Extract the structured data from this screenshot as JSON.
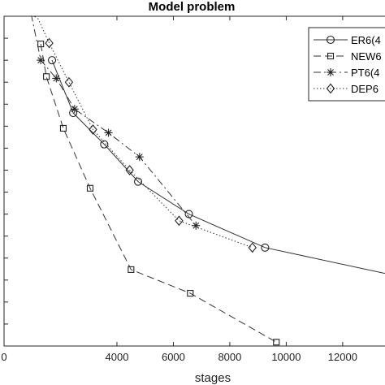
{
  "chart_data": {
    "type": "line",
    "title": "Model problem",
    "xlabel": "stages",
    "ylabel": "",
    "xlim": [
      0,
      13500
    ],
    "ylog": true,
    "ylim": [
      1e-16,
      0.1
    ],
    "xticks": [
      0,
      4000,
      6000,
      8000,
      10000,
      12000
    ],
    "xtick_labels": [
      "0",
      "4000",
      "6000",
      "8000",
      "10000",
      "12000"
    ],
    "grid": false,
    "legend_position": "top-right",
    "series": [
      {
        "name": "ER6(4",
        "line": "solid",
        "marker": "circle",
        "x": [
          1700,
          2450,
          3550,
          4750,
          6550,
          9250,
          13500
        ],
        "y": [
          0.001,
          4e-06,
          1.5e-07,
          3e-09,
          1e-10,
          3e-12,
          2e-13
        ]
      },
      {
        "name": "NEW6",
        "line": "dashed",
        "marker": "square",
        "x": [
          1300,
          1500,
          2100,
          3050,
          4500,
          6600,
          9650
        ],
        "y": [
          0.0055,
          0.00018,
          8e-07,
          1.5e-09,
          3e-13,
          2.5e-14,
          1.5e-16
        ]
      },
      {
        "name": "PT6(4",
        "line": "dashdot",
        "marker": "star",
        "x": [
          850,
          1300,
          1850,
          2500,
          3700,
          4800,
          6800
        ],
        "y": [
          0.6,
          0.001,
          0.00015,
          6e-06,
          5e-07,
          4e-08,
          3e-11
        ]
      },
      {
        "name": "DEP6",
        "line": "dotted",
        "marker": "diamond",
        "x": [
          1100,
          1600,
          2300,
          3150,
          4450,
          6200,
          8800
        ],
        "y": [
          0.15,
          0.006,
          0.0001,
          7e-07,
          1e-08,
          5e-11,
          3e-12
        ]
      }
    ]
  }
}
